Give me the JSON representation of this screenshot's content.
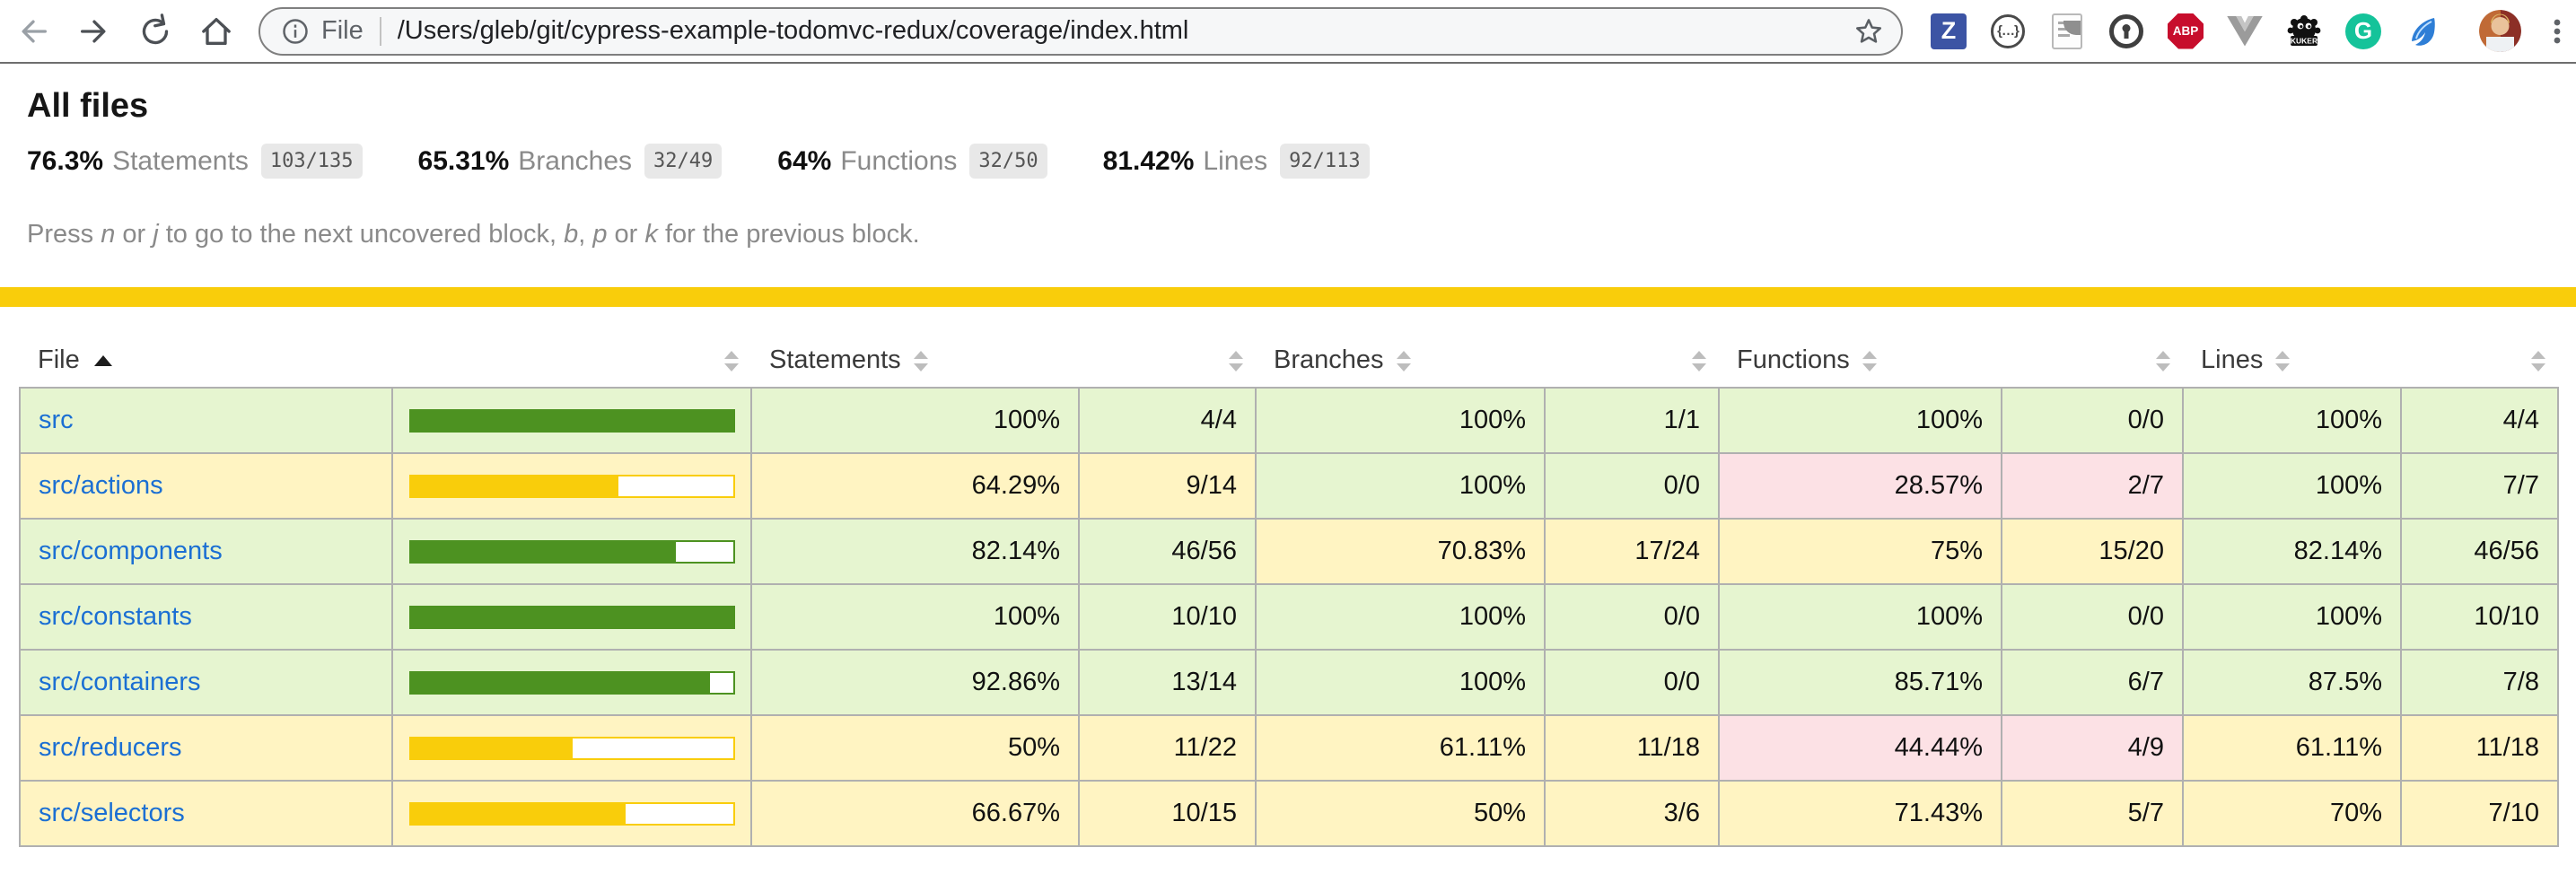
{
  "browser": {
    "scheme_label": "File",
    "url": "/Users/gleb/git/cypress-example-todomvc-redux/coverage/index.html",
    "extension_labels": {
      "zotero": "Z",
      "json_viewer": "{…}",
      "adblock": "ABP",
      "vue": "V",
      "kuker": "KUKER",
      "grammarly": "G"
    }
  },
  "page": {
    "title": "All files",
    "metrics": [
      {
        "pct": "76.3%",
        "label": "Statements",
        "fraction": "103/135"
      },
      {
        "pct": "65.31%",
        "label": "Branches",
        "fraction": "32/49"
      },
      {
        "pct": "64%",
        "label": "Functions",
        "fraction": "32/50"
      },
      {
        "pct": "81.42%",
        "label": "Lines",
        "fraction": "92/113"
      }
    ],
    "hint_parts": [
      {
        "t": "Press "
      },
      {
        "t": "n",
        "em": true
      },
      {
        "t": " or "
      },
      {
        "t": "j",
        "em": true
      },
      {
        "t": " to go to the next uncovered block, "
      },
      {
        "t": "b",
        "em": true
      },
      {
        "t": ", "
      },
      {
        "t": "p",
        "em": true
      },
      {
        "t": " or "
      },
      {
        "t": "k",
        "em": true
      },
      {
        "t": " for the previous block."
      }
    ],
    "colors": {
      "status_line": "#f9cd0b",
      "high_bg": "#e6f5d0",
      "medium_bg": "#fff4c2",
      "low_bg": "#fce1e5",
      "bar_high": "#4d9221",
      "bar_medium": "#f9cd0b",
      "link": "#1b6fd3"
    },
    "table": {
      "columns": [
        {
          "label": "File",
          "sort": "asc"
        },
        {
          "label": "",
          "sort": "both"
        },
        {
          "label": "Statements",
          "sort": "both"
        },
        {
          "label": "",
          "sort": "both"
        },
        {
          "label": "Branches",
          "sort": "both"
        },
        {
          "label": "",
          "sort": "both"
        },
        {
          "label": "Functions",
          "sort": "both"
        },
        {
          "label": "",
          "sort": "both"
        },
        {
          "label": "Lines",
          "sort": "both"
        },
        {
          "label": "",
          "sort": "both"
        }
      ],
      "rows": [
        {
          "file": "src",
          "level": "high",
          "bar": {
            "pct": 100,
            "level": "high"
          },
          "cells": [
            {
              "v": "100%",
              "c": "high"
            },
            {
              "v": "4/4",
              "c": "high"
            },
            {
              "v": "100%",
              "c": "high"
            },
            {
              "v": "1/1",
              "c": "high"
            },
            {
              "v": "100%",
              "c": "high"
            },
            {
              "v": "0/0",
              "c": "high"
            },
            {
              "v": "100%",
              "c": "high"
            },
            {
              "v": "4/4",
              "c": "high"
            }
          ]
        },
        {
          "file": "src/actions",
          "level": "medium",
          "bar": {
            "pct": 64.29,
            "level": "medium"
          },
          "cells": [
            {
              "v": "64.29%",
              "c": "medium"
            },
            {
              "v": "9/14",
              "c": "medium"
            },
            {
              "v": "100%",
              "c": "high"
            },
            {
              "v": "0/0",
              "c": "high"
            },
            {
              "v": "28.57%",
              "c": "low"
            },
            {
              "v": "2/7",
              "c": "low"
            },
            {
              "v": "100%",
              "c": "high"
            },
            {
              "v": "7/7",
              "c": "high"
            }
          ]
        },
        {
          "file": "src/components",
          "level": "high",
          "bar": {
            "pct": 82.14,
            "level": "high"
          },
          "cells": [
            {
              "v": "82.14%",
              "c": "high"
            },
            {
              "v": "46/56",
              "c": "high"
            },
            {
              "v": "70.83%",
              "c": "medium"
            },
            {
              "v": "17/24",
              "c": "medium"
            },
            {
              "v": "75%",
              "c": "medium"
            },
            {
              "v": "15/20",
              "c": "medium"
            },
            {
              "v": "82.14%",
              "c": "high"
            },
            {
              "v": "46/56",
              "c": "high"
            }
          ]
        },
        {
          "file": "src/constants",
          "level": "high",
          "bar": {
            "pct": 100,
            "level": "high"
          },
          "cells": [
            {
              "v": "100%",
              "c": "high"
            },
            {
              "v": "10/10",
              "c": "high"
            },
            {
              "v": "100%",
              "c": "high"
            },
            {
              "v": "0/0",
              "c": "high"
            },
            {
              "v": "100%",
              "c": "high"
            },
            {
              "v": "0/0",
              "c": "high"
            },
            {
              "v": "100%",
              "c": "high"
            },
            {
              "v": "10/10",
              "c": "high"
            }
          ]
        },
        {
          "file": "src/containers",
          "level": "high",
          "bar": {
            "pct": 92.86,
            "level": "high"
          },
          "cells": [
            {
              "v": "92.86%",
              "c": "high"
            },
            {
              "v": "13/14",
              "c": "high"
            },
            {
              "v": "100%",
              "c": "high"
            },
            {
              "v": "0/0",
              "c": "high"
            },
            {
              "v": "85.71%",
              "c": "high"
            },
            {
              "v": "6/7",
              "c": "high"
            },
            {
              "v": "87.5%",
              "c": "high"
            },
            {
              "v": "7/8",
              "c": "high"
            }
          ]
        },
        {
          "file": "src/reducers",
          "level": "medium",
          "bar": {
            "pct": 50,
            "level": "medium"
          },
          "cells": [
            {
              "v": "50%",
              "c": "medium"
            },
            {
              "v": "11/22",
              "c": "medium"
            },
            {
              "v": "61.11%",
              "c": "medium"
            },
            {
              "v": "11/18",
              "c": "medium"
            },
            {
              "v": "44.44%",
              "c": "low"
            },
            {
              "v": "4/9",
              "c": "low"
            },
            {
              "v": "61.11%",
              "c": "medium"
            },
            {
              "v": "11/18",
              "c": "medium"
            }
          ]
        },
        {
          "file": "src/selectors",
          "level": "medium",
          "bar": {
            "pct": 66.67,
            "level": "medium"
          },
          "cells": [
            {
              "v": "66.67%",
              "c": "medium"
            },
            {
              "v": "10/15",
              "c": "medium"
            },
            {
              "v": "50%",
              "c": "medium"
            },
            {
              "v": "3/6",
              "c": "medium"
            },
            {
              "v": "71.43%",
              "c": "medium"
            },
            {
              "v": "5/7",
              "c": "medium"
            },
            {
              "v": "70%",
              "c": "medium"
            },
            {
              "v": "7/10",
              "c": "medium"
            }
          ]
        }
      ]
    }
  }
}
